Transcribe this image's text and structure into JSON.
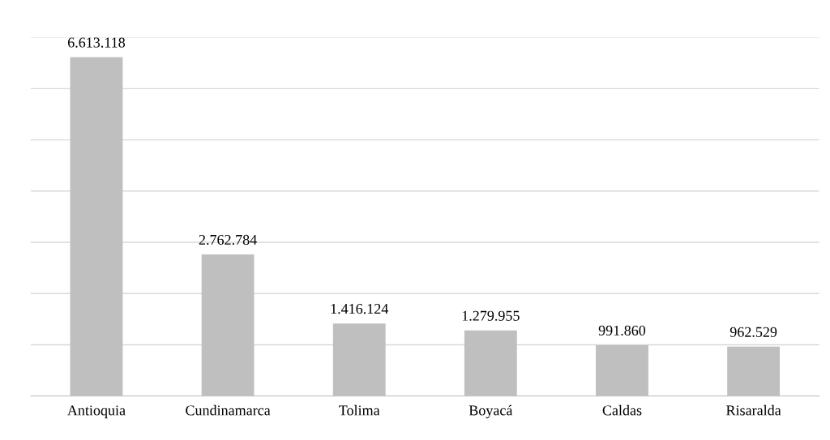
{
  "chart_data": {
    "type": "bar",
    "categories": [
      "Antioquia",
      "Cundinamarca",
      "Tolima",
      "Boyacá",
      "Caldas",
      "Risaralda"
    ],
    "values": [
      6613118,
      2762784,
      1416124,
      1279955,
      991860,
      962529
    ],
    "value_labels": [
      "6.613.118",
      "2.762.784",
      "1.416.124",
      "1.279.955",
      "991.860",
      "962.529"
    ],
    "color": "#bfbfbf",
    "ylim": [
      0,
      7000000
    ],
    "yticks": [
      {
        "value": 0,
        "label": null
      },
      {
        "value": 1000000,
        "label": null
      },
      {
        "value": 2000000,
        "label": null
      },
      {
        "value": 3000000,
        "label": null
      },
      {
        "value": 4000000,
        "label": null
      },
      {
        "value": 5000000,
        "label": null
      },
      {
        "value": 6000000,
        "label": null
      },
      {
        "value": 7000000,
        "label": null
      }
    ],
    "tick_labels": "x",
    "grid": "y",
    "legend": false
  }
}
